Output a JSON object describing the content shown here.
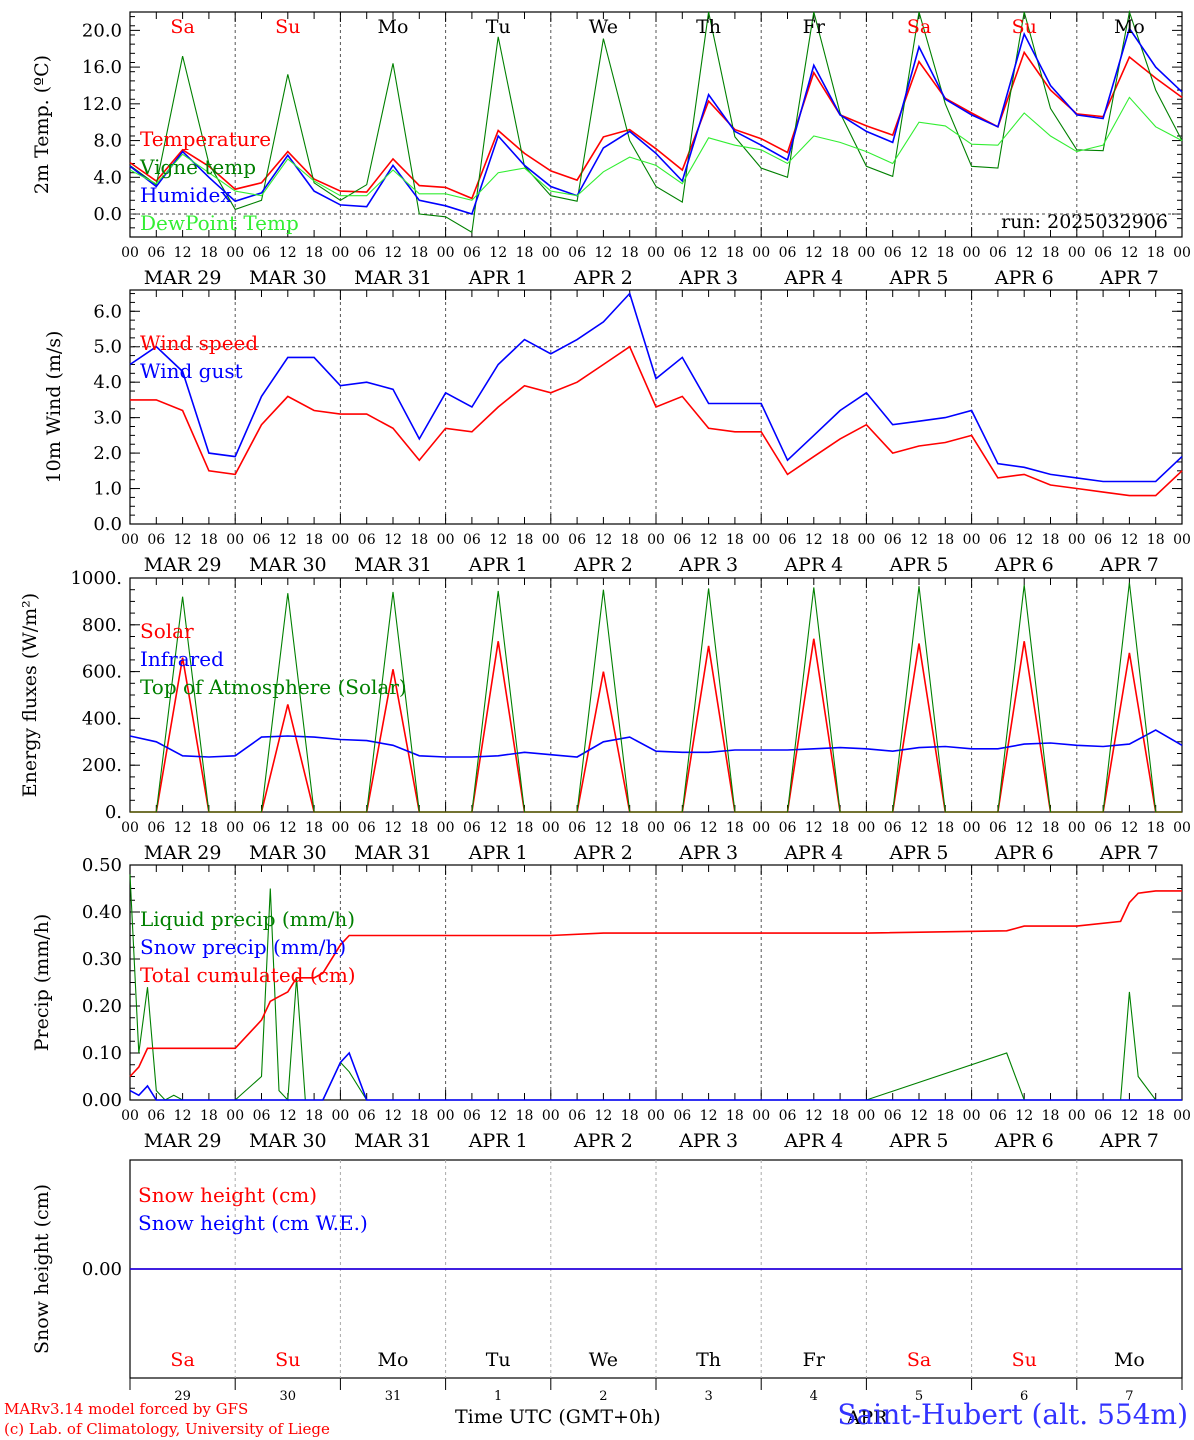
{
  "run_label": "run: 2025032906",
  "footer": {
    "credit_line1": "MARv3.14 model forced by GFS",
    "credit_line2": "(c) Lab. of Climatology, University of Liege",
    "xaxis_title": "Time UTC (GMT+0h)",
    "station": "Saint-Hubert (alt. 554m)",
    "month_label": "APR"
  },
  "time_axis": {
    "hour_ticks": [
      "00",
      "06",
      "12",
      "18"
    ],
    "dates": [
      "MAR 29",
      "MAR 30",
      "MAR 31",
      "APR  1",
      "APR  2",
      "APR  3",
      "APR  4",
      "APR  5",
      "APR  6",
      "APR  7"
    ],
    "days": [
      "Sa",
      "Su",
      "Mo",
      "Tu",
      "We",
      "Th",
      "Fr",
      "Sa",
      "Su",
      "Mo"
    ],
    "weekend": [
      true,
      true,
      false,
      false,
      false,
      false,
      false,
      true,
      true,
      false
    ],
    "day_numbers": [
      "29",
      "30",
      "31",
      "1",
      "2",
      "3",
      "4",
      "5",
      "6",
      "7"
    ]
  },
  "colors": {
    "red": "#ff0000",
    "dark_green": "#008000",
    "blue": "#0000ff",
    "light_green": "#33ee33",
    "axis": "#000000"
  },
  "chart_data": [
    {
      "type": "line",
      "ylabel": "2m Temp. (oC)",
      "ylim": [
        -2.5,
        22
      ],
      "yticks": [
        "0.0",
        "4.0",
        "8.0",
        "12.0",
        "16.0",
        "20.0"
      ],
      "ytick_values": [
        0,
        4,
        8,
        12,
        16,
        20
      ],
      "reference_line": 0,
      "x_hours": [
        0,
        6,
        12,
        18,
        24,
        30,
        36,
        42,
        48,
        54,
        60,
        66,
        72,
        78,
        84,
        90,
        96,
        102,
        108,
        114,
        120,
        126,
        132,
        138,
        144,
        150,
        156,
        162,
        168,
        174,
        180,
        186,
        192,
        198,
        204,
        210,
        216,
        222,
        228,
        234,
        240
      ],
      "series": [
        {
          "name": "Temperature",
          "color": "#ff0000",
          "values": [
            5.6,
            3.6,
            7.0,
            5.2,
            2.7,
            3.4,
            6.8,
            3.8,
            2.5,
            2.4,
            6.0,
            3.1,
            2.9,
            1.7,
            9.1,
            6.6,
            4.7,
            3.7,
            8.4,
            9.2,
            7.1,
            4.8,
            12.3,
            9.2,
            8.2,
            6.7,
            15.4,
            10.8,
            9.6,
            8.6,
            16.6,
            12.6,
            11.0,
            9.5,
            17.6,
            13.5,
            10.9,
            10.6,
            17.1,
            14.8,
            12.7
          ]
        },
        {
          "name": "Vigne temp",
          "color": "#008000",
          "values": [
            5.3,
            3.2,
            17.2,
            5.5,
            0.5,
            1.5,
            15.2,
            3.4,
            1.5,
            3.2,
            16.4,
            0.0,
            -0.3,
            -2.0,
            19.3,
            5.2,
            2.0,
            1.4,
            19.1,
            8.0,
            3.0,
            1.3,
            22.0,
            8.4,
            5.0,
            4.0,
            22.0,
            11.0,
            5.2,
            4.1,
            22.0,
            12.0,
            5.2,
            5.0,
            22.0,
            11.5,
            7.0,
            6.9,
            22.0,
            13.5,
            8.0
          ]
        },
        {
          "name": "Humidex",
          "color": "#0000ff",
          "values": [
            5.2,
            3.0,
            6.8,
            4.0,
            1.4,
            2.3,
            6.4,
            2.5,
            1.0,
            0.8,
            5.3,
            1.5,
            0.9,
            0.0,
            8.5,
            5.3,
            3.0,
            2.0,
            7.2,
            9.0,
            6.6,
            3.6,
            13.0,
            9.0,
            7.5,
            5.9,
            16.2,
            10.8,
            9.0,
            7.8,
            18.2,
            12.5,
            10.8,
            9.5,
            19.6,
            14.0,
            10.8,
            10.4,
            20.2,
            16.0,
            13.3
          ]
        },
        {
          "name": "DewPoint Temp",
          "color": "#33ee33",
          "values": [
            4.8,
            3.3,
            6.5,
            4.5,
            2.5,
            2.0,
            6.0,
            3.6,
            2.0,
            2.0,
            4.8,
            2.2,
            2.2,
            1.5,
            4.5,
            5.0,
            2.5,
            2.0,
            4.6,
            6.2,
            5.3,
            3.3,
            8.3,
            7.5,
            7.0,
            5.5,
            8.5,
            7.8,
            6.8,
            5.5,
            10.0,
            9.6,
            7.6,
            7.5,
            11.0,
            8.5,
            6.8,
            7.5,
            12.7,
            9.5,
            8.0
          ]
        }
      ]
    },
    {
      "type": "line",
      "ylabel": "10m Wind (m/s)",
      "ylim": [
        0,
        6.6
      ],
      "yticks": [
        "0.0",
        "1.0",
        "2.0",
        "3.0",
        "4.0",
        "5.0",
        "6.0"
      ],
      "ytick_values": [
        0,
        1,
        2,
        3,
        4,
        5,
        6
      ],
      "reference_line": 5,
      "x_hours": [
        0,
        6,
        12,
        18,
        24,
        30,
        36,
        42,
        48,
        54,
        60,
        66,
        72,
        78,
        84,
        90,
        96,
        102,
        108,
        114,
        120,
        126,
        132,
        138,
        144,
        150,
        156,
        162,
        168,
        174,
        180,
        186,
        192,
        198,
        204,
        210,
        216,
        222,
        228,
        234,
        240
      ],
      "series": [
        {
          "name": "Wind speed",
          "color": "#ff0000",
          "values": [
            3.5,
            3.5,
            3.2,
            1.5,
            1.4,
            2.8,
            3.6,
            3.2,
            3.1,
            3.1,
            2.7,
            1.8,
            2.7,
            2.6,
            3.3,
            3.9,
            3.7,
            4.0,
            4.5,
            5.0,
            3.3,
            3.6,
            2.7,
            2.6,
            2.6,
            1.4,
            1.9,
            2.4,
            2.8,
            2.0,
            2.2,
            2.3,
            2.5,
            1.3,
            1.4,
            1.1,
            1.0,
            0.9,
            0.8,
            0.8,
            1.5
          ]
        },
        {
          "name": "Wind gust",
          "color": "#0000ff",
          "values": [
            4.5,
            5.0,
            4.3,
            2.0,
            1.9,
            3.6,
            4.7,
            4.7,
            3.9,
            4.0,
            3.8,
            2.4,
            3.7,
            3.3,
            4.5,
            5.2,
            4.8,
            5.2,
            5.7,
            6.5,
            4.1,
            4.7,
            3.4,
            3.4,
            3.4,
            1.8,
            2.5,
            3.2,
            3.7,
            2.8,
            2.9,
            3.0,
            3.2,
            1.7,
            1.6,
            1.4,
            1.3,
            1.2,
            1.2,
            1.2,
            1.9
          ]
        }
      ]
    },
    {
      "type": "line",
      "ylabel": "Energy fluxes (W/m2)",
      "ylim": [
        0,
        1000
      ],
      "yticks": [
        "0.",
        "200.",
        "400.",
        "600.",
        "800.",
        "1000."
      ],
      "ytick_values": [
        0,
        200,
        400,
        600,
        800,
        1000
      ],
      "x_hours": [
        0,
        6,
        12,
        18,
        24,
        30,
        36,
        42,
        48,
        54,
        60,
        66,
        72,
        78,
        84,
        90,
        96,
        102,
        108,
        114,
        120,
        126,
        132,
        138,
        144,
        150,
        156,
        162,
        168,
        174,
        180,
        186,
        192,
        198,
        204,
        210,
        216,
        222,
        228,
        234,
        240
      ],
      "series": [
        {
          "name": "Solar",
          "color": "#ff0000",
          "values": [
            0,
            0,
            660,
            0,
            0,
            0,
            460,
            0,
            0,
            0,
            610,
            0,
            0,
            0,
            730,
            0,
            0,
            0,
            600,
            0,
            0,
            0,
            710,
            0,
            0,
            0,
            740,
            0,
            0,
            0,
            720,
            0,
            0,
            0,
            730,
            0,
            0,
            0,
            680,
            0,
            0
          ]
        },
        {
          "name": "Infrared",
          "color": "#0000ff",
          "values": [
            325,
            300,
            240,
            235,
            240,
            320,
            325,
            320,
            310,
            305,
            285,
            240,
            235,
            235,
            240,
            255,
            245,
            235,
            300,
            320,
            260,
            255,
            255,
            265,
            265,
            265,
            270,
            275,
            270,
            260,
            275,
            280,
            270,
            270,
            290,
            295,
            285,
            280,
            290,
            350,
            285
          ]
        },
        {
          "name": "Top of Atmosphere (Solar)",
          "color": "#008000",
          "values": [
            0,
            0,
            920,
            0,
            0,
            0,
            935,
            0,
            0,
            0,
            940,
            0,
            0,
            0,
            945,
            0,
            0,
            0,
            950,
            0,
            0,
            0,
            955,
            0,
            0,
            0,
            960,
            0,
            0,
            0,
            965,
            0,
            0,
            0,
            970,
            0,
            0,
            0,
            980,
            0,
            0
          ]
        }
      ]
    },
    {
      "type": "line",
      "ylabel": "Precip (mm/h)",
      "ylim": [
        0,
        0.5
      ],
      "yticks": [
        "0.00",
        "0.10",
        "0.20",
        "0.30",
        "0.40",
        "0.50"
      ],
      "ytick_values": [
        0,
        0.1,
        0.2,
        0.3,
        0.4,
        0.5
      ],
      "x_hours": [
        0,
        2,
        4,
        6,
        8,
        10,
        12,
        24,
        30,
        32,
        34,
        36,
        38,
        40,
        42,
        44,
        48,
        50,
        54,
        60,
        66,
        72,
        96,
        108,
        120,
        168,
        200,
        204,
        216,
        226,
        228,
        230,
        234,
        240
      ],
      "series": [
        {
          "name": "Liquid precip (mm/h)",
          "color": "#008000",
          "values": [
            0.48,
            0.1,
            0.24,
            0.02,
            0.0,
            0.01,
            0.0,
            0.0,
            0.05,
            0.45,
            0.02,
            0.0,
            0.26,
            0.0,
            0.0,
            0.0,
            0.08,
            0.06,
            0.0,
            0.0,
            0.0,
            0.0,
            0.0,
            0.0,
            0.0,
            0.0,
            0.1,
            0.0,
            0.0,
            0.0,
            0.23,
            0.05,
            0.0,
            0.0
          ]
        },
        {
          "name": "Snow precip (mm/h)",
          "color": "#0000ff",
          "values": [
            0.02,
            0.01,
            0.03,
            0.0,
            0.0,
            0.0,
            0.0,
            0.0,
            0.0,
            0.0,
            0.0,
            0.0,
            0.0,
            0.0,
            0.0,
            0.0,
            0.08,
            0.1,
            0.0,
            0.0,
            0.0,
            0.0,
            0.0,
            0.0,
            0.0,
            0.0,
            0.0,
            0.0,
            0.0,
            0.0,
            0.0,
            0.0,
            0.0,
            0.0
          ]
        },
        {
          "name": "Total cumulated (cm)",
          "color": "#ff0000",
          "values": [
            0.05,
            0.07,
            0.11,
            0.11,
            0.11,
            0.11,
            0.11,
            0.11,
            0.17,
            0.21,
            0.22,
            0.23,
            0.26,
            0.26,
            0.26,
            0.27,
            0.33,
            0.35,
            0.35,
            0.35,
            0.35,
            0.35,
            0.35,
            0.355,
            0.355,
            0.355,
            0.36,
            0.37,
            0.37,
            0.38,
            0.42,
            0.44,
            0.445,
            0.445
          ]
        }
      ]
    },
    {
      "type": "line",
      "ylabel": "Snow height (cm)",
      "ylim": [
        -1,
        1
      ],
      "yticks": [
        "0.00"
      ],
      "ytick_values": [
        0
      ],
      "x_hours": [
        0,
        240
      ],
      "series": [
        {
          "name": "Snow height (cm)",
          "color": "#ff0000",
          "values": [
            0,
            0
          ]
        },
        {
          "name": "Snow height (cm W.E.)",
          "color": "#0000ff",
          "values": [
            0,
            0
          ]
        }
      ]
    }
  ]
}
